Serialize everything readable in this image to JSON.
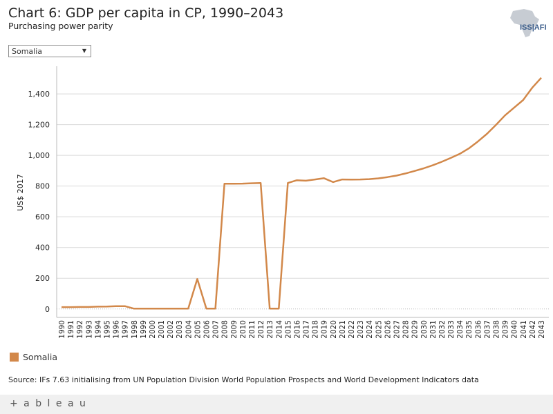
{
  "header": {
    "title": "Chart 6: GDP per capita in CP, 1990–2043",
    "subtitle": "Purchasing power parity",
    "logo_text": "ISS|AFI"
  },
  "filter": {
    "selected": "Somalia"
  },
  "legend": {
    "label": "Somalia",
    "color": "#d2884a"
  },
  "source": "Source: IFs 7.63 initialising from UN Population Division World Population Prospects and World Development Indicators data",
  "footer": {
    "brand": "+ a b l e a u"
  },
  "chart_data": {
    "type": "line",
    "title": "Chart 6: GDP per capita in CP, 1990–2043",
    "subtitle": "Purchasing power parity",
    "xlabel": "",
    "ylabel": "US$ 2017",
    "ylim": [
      -55,
      1580
    ],
    "yticks": [
      0,
      200,
      400,
      600,
      800,
      "1,000",
      "1,200",
      "1,400"
    ],
    "ytick_values": [
      0,
      200,
      400,
      600,
      800,
      1000,
      1200,
      1400
    ],
    "grid": true,
    "legend_position": "bottom-left",
    "x": [
      1990,
      1991,
      1992,
      1993,
      1994,
      1995,
      1996,
      1997,
      1998,
      1999,
      2000,
      2001,
      2002,
      2003,
      2004,
      2005,
      2006,
      2007,
      2008,
      2009,
      2010,
      2011,
      2012,
      2013,
      2014,
      2015,
      2016,
      2017,
      2018,
      2019,
      2020,
      2021,
      2022,
      2023,
      2024,
      2025,
      2026,
      2027,
      2028,
      2029,
      2030,
      2031,
      2032,
      2033,
      2034,
      2035,
      2036,
      2037,
      2038,
      2039,
      2040,
      2041,
      2042,
      2043
    ],
    "series": [
      {
        "name": "Somalia",
        "color": "#d2884a",
        "values": [
          12,
          12,
          13,
          13,
          15,
          16,
          18,
          18,
          2,
          2,
          2,
          2,
          2,
          2,
          2,
          195,
          2,
          2,
          815,
          815,
          816,
          818,
          820,
          2,
          2,
          820,
          838,
          835,
          843,
          851,
          826,
          843,
          842,
          843,
          845,
          850,
          858,
          868,
          882,
          898,
          915,
          935,
          958,
          983,
          1010,
          1045,
          1090,
          1140,
          1198,
          1260,
          1310,
          1360,
          1440,
          1505
        ]
      }
    ]
  }
}
